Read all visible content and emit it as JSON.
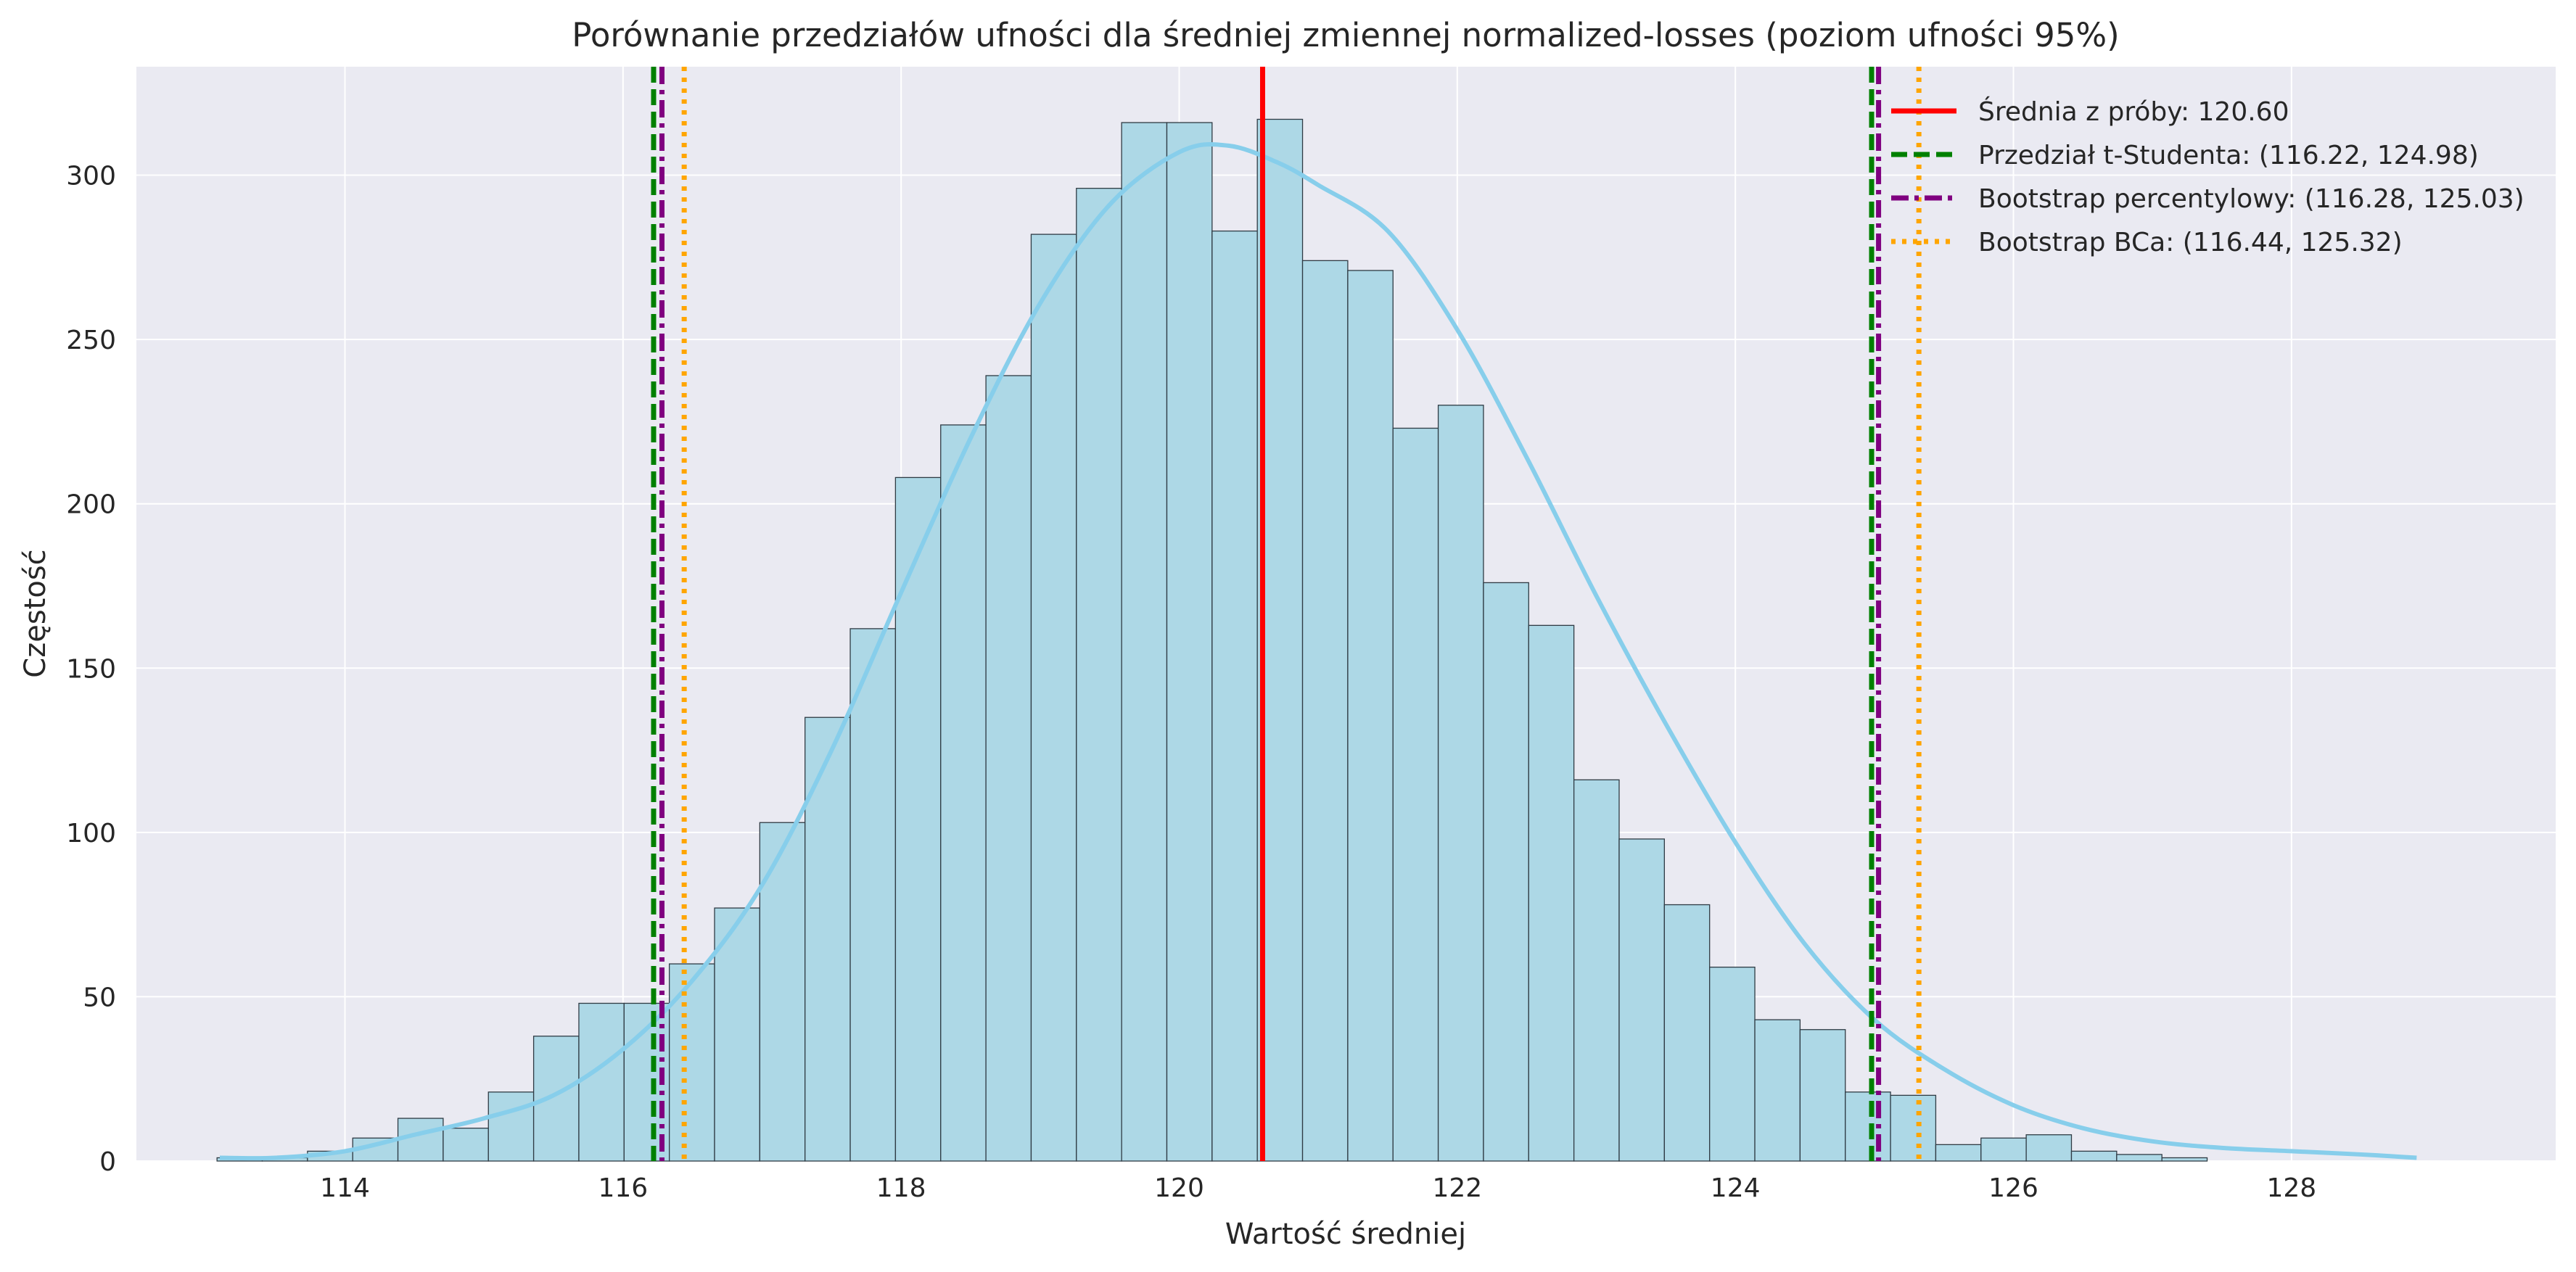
{
  "chart_data": {
    "type": "bar",
    "title": "Porównanie przedziałów ufności dla średniej zmiennej normalized-losses (poziom ufności 95%)",
    "xlabel": "Wartość średniej",
    "ylabel": "Częstość",
    "xlim": [
      112.5,
      129.9
    ],
    "ylim": [
      0,
      333
    ],
    "grid": true,
    "x_ticks": [
      114,
      116,
      118,
      120,
      122,
      124,
      126,
      128
    ],
    "y_ticks": [
      0,
      50,
      100,
      150,
      200,
      250,
      300
    ],
    "histogram": {
      "bin_width": 0.3253,
      "bin_start": 113.08,
      "counts": [
        1,
        1,
        3,
        7,
        13,
        10,
        21,
        38,
        48,
        48,
        60,
        77,
        103,
        135,
        162,
        208,
        224,
        239,
        282,
        296,
        316,
        316,
        283,
        317,
        274,
        271,
        223,
        230,
        176,
        163,
        116,
        98,
        78,
        59,
        43,
        40,
        21,
        20,
        5,
        7,
        8,
        3,
        2,
        1
      ],
      "fill_color": "#add8e6",
      "edge_color": "#2f3b44"
    },
    "kde": {
      "color": "#87ceeb",
      "x": [
        113.1,
        113.5,
        114.0,
        114.5,
        115.0,
        115.5,
        116.0,
        116.5,
        117.0,
        117.5,
        118.0,
        118.5,
        119.0,
        119.5,
        120.0,
        120.35,
        120.7,
        121.0,
        121.5,
        122.0,
        122.5,
        123.0,
        123.5,
        124.0,
        124.5,
        125.0,
        125.5,
        126.0,
        126.5,
        127.0,
        127.5,
        128.0,
        128.5,
        128.9
      ],
      "y": [
        1,
        1,
        3,
        8,
        13,
        20,
        34,
        55,
        84,
        125,
        173,
        220,
        261,
        291,
        307,
        309,
        304,
        297,
        283,
        253,
        214,
        172,
        133,
        97,
        66,
        43,
        28,
        17,
        10,
        6,
        4,
        3,
        2,
        1
      ]
    },
    "reference_lines": [
      {
        "name": "Średnia z próby: 120.60",
        "x": 120.6,
        "color": "#ff0000",
        "style": "solid"
      },
      {
        "name": "Przedział t-Studenta: (116.22, 124.98)",
        "x": [
          116.22,
          124.98
        ],
        "color": "#008000",
        "style": "dashed"
      },
      {
        "name": "Bootstrap percentylowy: (116.28, 125.03)",
        "x": [
          116.28,
          125.03
        ],
        "color": "#800080",
        "style": "dashdot"
      },
      {
        "name": "Bootstrap BCa: (116.44, 125.32)",
        "x": [
          116.44,
          125.32
        ],
        "color": "#ffa500",
        "style": "dotted"
      }
    ],
    "legend_position": "top-right"
  }
}
